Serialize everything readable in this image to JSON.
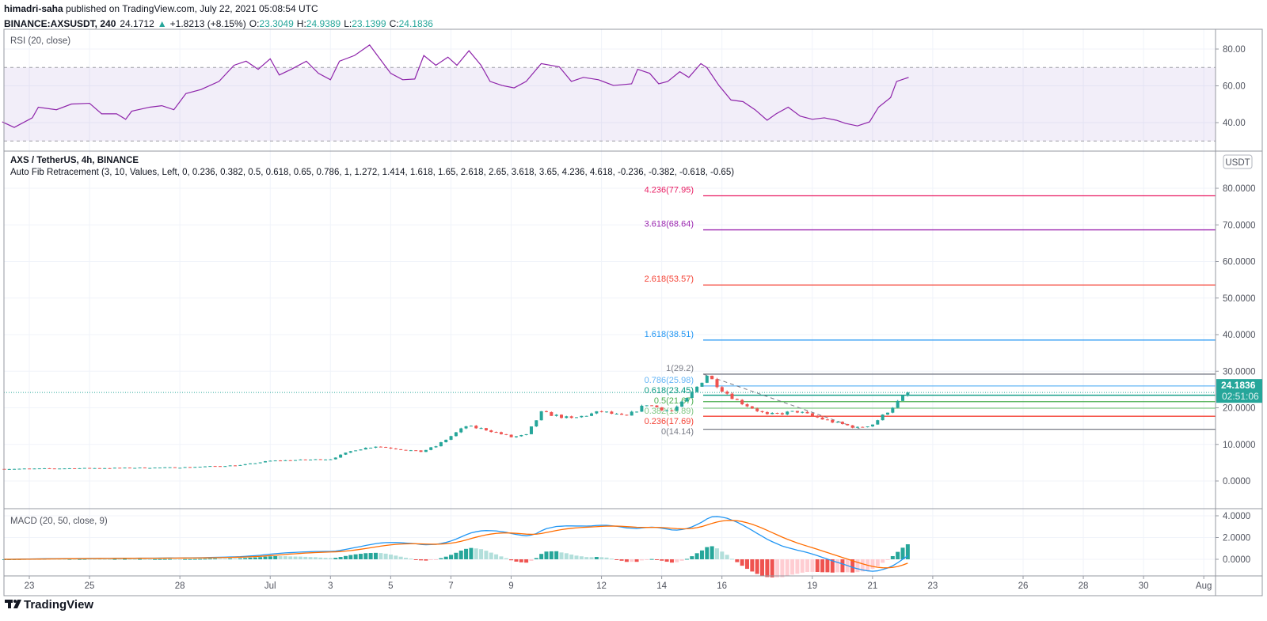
{
  "header": {
    "author": "himadri-saha",
    "published": " published on TradingView.com, July 22, 2021 05:08:54 UTC",
    "symbol": "BINANCE:AXSUSDT, 240",
    "last": "24.1712",
    "arrow": "▲",
    "change": "+1.8213 (+8.15%)",
    "o_label": "O:",
    "o": "23.3049",
    "h_label": "H:",
    "h": "24.9389",
    "l_label": "L:",
    "l": "23.1399",
    "c_label": "C:",
    "c": "24.1836"
  },
  "rsi": {
    "title": "RSI (20, close)",
    "axis": [
      "80.00",
      "60.00",
      "40.00"
    ],
    "band": [
      30,
      70
    ],
    "color": "#8e24aa",
    "points": [
      [
        -0.9,
        40.4
      ],
      [
        -0.5,
        37.4
      ],
      [
        0.1,
        42.6
      ],
      [
        0.3,
        48.4
      ],
      [
        0.9,
        47
      ],
      [
        1.4,
        50.1
      ],
      [
        2.0,
        50.5
      ],
      [
        2.4,
        44.8
      ],
      [
        2.9,
        44.8
      ],
      [
        3.2,
        41.8
      ],
      [
        3.4,
        46.2
      ],
      [
        4.0,
        48.4
      ],
      [
        4.4,
        49.2
      ],
      [
        4.8,
        47
      ],
      [
        5.2,
        55.8
      ],
      [
        5.7,
        58
      ],
      [
        6.3,
        62.4
      ],
      [
        6.8,
        71.2
      ],
      [
        7.2,
        73.4
      ],
      [
        7.6,
        69
      ],
      [
        8.0,
        74.7
      ],
      [
        8.3,
        65.9
      ],
      [
        8.7,
        69
      ],
      [
        9.2,
        73.4
      ],
      [
        9.6,
        66.8
      ],
      [
        10.0,
        63.3
      ],
      [
        10.3,
        73.4
      ],
      [
        10.8,
        76.5
      ],
      [
        11.3,
        82.2
      ],
      [
        11.6,
        75.6
      ],
      [
        12.0,
        66.8
      ],
      [
        12.4,
        63.3
      ],
      [
        12.8,
        63.7
      ],
      [
        13.1,
        76.5
      ],
      [
        13.5,
        71.2
      ],
      [
        13.9,
        75.6
      ],
      [
        14.2,
        71.2
      ],
      [
        14.6,
        79.1
      ],
      [
        15.0,
        71.2
      ],
      [
        15.3,
        62.4
      ],
      [
        15.7,
        60.2
      ],
      [
        16.1,
        58.9
      ],
      [
        16.5,
        62.4
      ],
      [
        17.0,
        72.1
      ],
      [
        17.6,
        70.3
      ],
      [
        18.0,
        62.4
      ],
      [
        18.4,
        64.6
      ],
      [
        18.9,
        63.3
      ],
      [
        19.4,
        60.2
      ],
      [
        20.0,
        61.1
      ],
      [
        20.2,
        69
      ],
      [
        20.6,
        66.8
      ],
      [
        20.9,
        61.1
      ],
      [
        21.2,
        62.4
      ],
      [
        21.6,
        67.7
      ],
      [
        21.9,
        64.6
      ],
      [
        22.3,
        72.1
      ],
      [
        22.5,
        69.9
      ],
      [
        22.9,
        60.2
      ],
      [
        23.3,
        52.3
      ],
      [
        23.7,
        51.4
      ],
      [
        24.1,
        47
      ],
      [
        24.5,
        41.3
      ],
      [
        24.8,
        44.8
      ],
      [
        25.2,
        48.4
      ],
      [
        25.6,
        43.5
      ],
      [
        26.0,
        41.8
      ],
      [
        26.4,
        42.6
      ],
      [
        26.8,
        41.3
      ],
      [
        27.1,
        39.6
      ],
      [
        27.5,
        38.2
      ],
      [
        27.9,
        40.4
      ],
      [
        28.2,
        48.4
      ],
      [
        28.6,
        53.6
      ],
      [
        28.8,
        62.4
      ],
      [
        29.2,
        64.6
      ]
    ]
  },
  "main": {
    "title": "AXS / TetherUS, 4h, BINANCE",
    "indicator": "Auto Fib Retracement (3, 10, Values, Left, 0, 0.236, 0.382, 0.5, 0.618, 0.65, 0.786, 1, 1.272, 1.414, 1.618, 1.65, 2.618, 2.65, 3.618, 3.65, 4.236, 4.618, -0.236, -0.382, -0.618, -0.65)",
    "currency": "USDT",
    "axis": [
      "80.0000",
      "70.0000",
      "60.0000",
      "50.0000",
      "40.0000",
      "30.0000",
      "20.0000",
      "10.0000",
      "0.0000"
    ],
    "last_price": "24.1836",
    "countdown": "02:51:06",
    "up_color": "#26a69a",
    "down_color": "#ef5350",
    "price_keypoints": [
      [
        -0.9,
        3.3
      ],
      [
        2,
        3.5
      ],
      [
        5,
        3.7
      ],
      [
        7,
        4.3
      ],
      [
        8,
        5.5
      ],
      [
        10,
        6
      ],
      [
        10.8,
        8.5
      ],
      [
        11.5,
        9.5
      ],
      [
        12.5,
        8.5
      ],
      [
        13,
        8
      ],
      [
        13.5,
        9.5
      ],
      [
        14.5,
        15
      ],
      [
        15.2,
        14
      ],
      [
        16,
        12
      ],
      [
        16.5,
        12.5
      ],
      [
        17,
        18.7
      ],
      [
        18,
        17
      ],
      [
        19,
        19
      ],
      [
        19.8,
        17.5
      ],
      [
        20.5,
        21
      ],
      [
        21.3,
        19
      ],
      [
        21.8,
        22
      ],
      [
        22.3,
        27
      ],
      [
        22.5,
        29
      ],
      [
        23,
        25
      ],
      [
        23.5,
        22
      ],
      [
        24.5,
        18
      ],
      [
        25.5,
        19
      ],
      [
        26.5,
        16.5
      ],
      [
        27.5,
        14.5
      ],
      [
        28,
        15.5
      ],
      [
        28.5,
        19
      ],
      [
        29.17,
        24.18
      ]
    ],
    "fib": [
      {
        "label": "4.236(77.95)",
        "value": 77.95,
        "color": "#e91e63"
      },
      {
        "label": "3.618(68.64)",
        "value": 68.64,
        "color": "#9c27b0"
      },
      {
        "label": "2.618(53.57)",
        "value": 53.57,
        "color": "#f44336"
      },
      {
        "label": "1.618(38.51)",
        "value": 38.51,
        "color": "#2196f3"
      },
      {
        "label": "1(29.2)",
        "value": 29.2,
        "color": "#787b86"
      },
      {
        "label": "0.786(25.98)",
        "value": 25.98,
        "color": "#64b5f6"
      },
      {
        "label": "0.618(23.45)",
        "value": 23.45,
        "color": "#089981"
      },
      {
        "label": "0.5(21.67)",
        "value": 21.67,
        "color": "#4caf50"
      },
      {
        "label": "0.382(19.89)",
        "value": 19.89,
        "color": "#81c784"
      },
      {
        "label": "0.236(17.69)",
        "value": 17.69,
        "color": "#f44336"
      },
      {
        "label": "0(14.14)",
        "value": 14.14,
        "color": "#787b86"
      }
    ]
  },
  "macd": {
    "title": "MACD (20, 50, close, 9)",
    "axis": [
      "4.0000",
      "2.0000",
      "0.0000"
    ],
    "macd_color": "#2196f3",
    "signal_color": "#ff6d00"
  },
  "xaxis": {
    "labels": [
      {
        "t": "23",
        "d": 0
      },
      {
        "t": "25",
        "d": 2
      },
      {
        "t": "28",
        "d": 5
      },
      {
        "t": "Jul",
        "d": 8
      },
      {
        "t": "3",
        "d": 10
      },
      {
        "t": "5",
        "d": 12
      },
      {
        "t": "7",
        "d": 14
      },
      {
        "t": "9",
        "d": 16
      },
      {
        "t": "12",
        "d": 19
      },
      {
        "t": "14",
        "d": 21
      },
      {
        "t": "16",
        "d": 23
      },
      {
        "t": "19",
        "d": 26
      },
      {
        "t": "21",
        "d": 28
      },
      {
        "t": "23",
        "d": 30
      },
      {
        "t": "26",
        "d": 33
      },
      {
        "t": "28",
        "d": 35
      },
      {
        "t": "30",
        "d": 37
      },
      {
        "t": "Aug",
        "d": 39
      }
    ]
  },
  "footer": {
    "logo": "TradingView"
  }
}
